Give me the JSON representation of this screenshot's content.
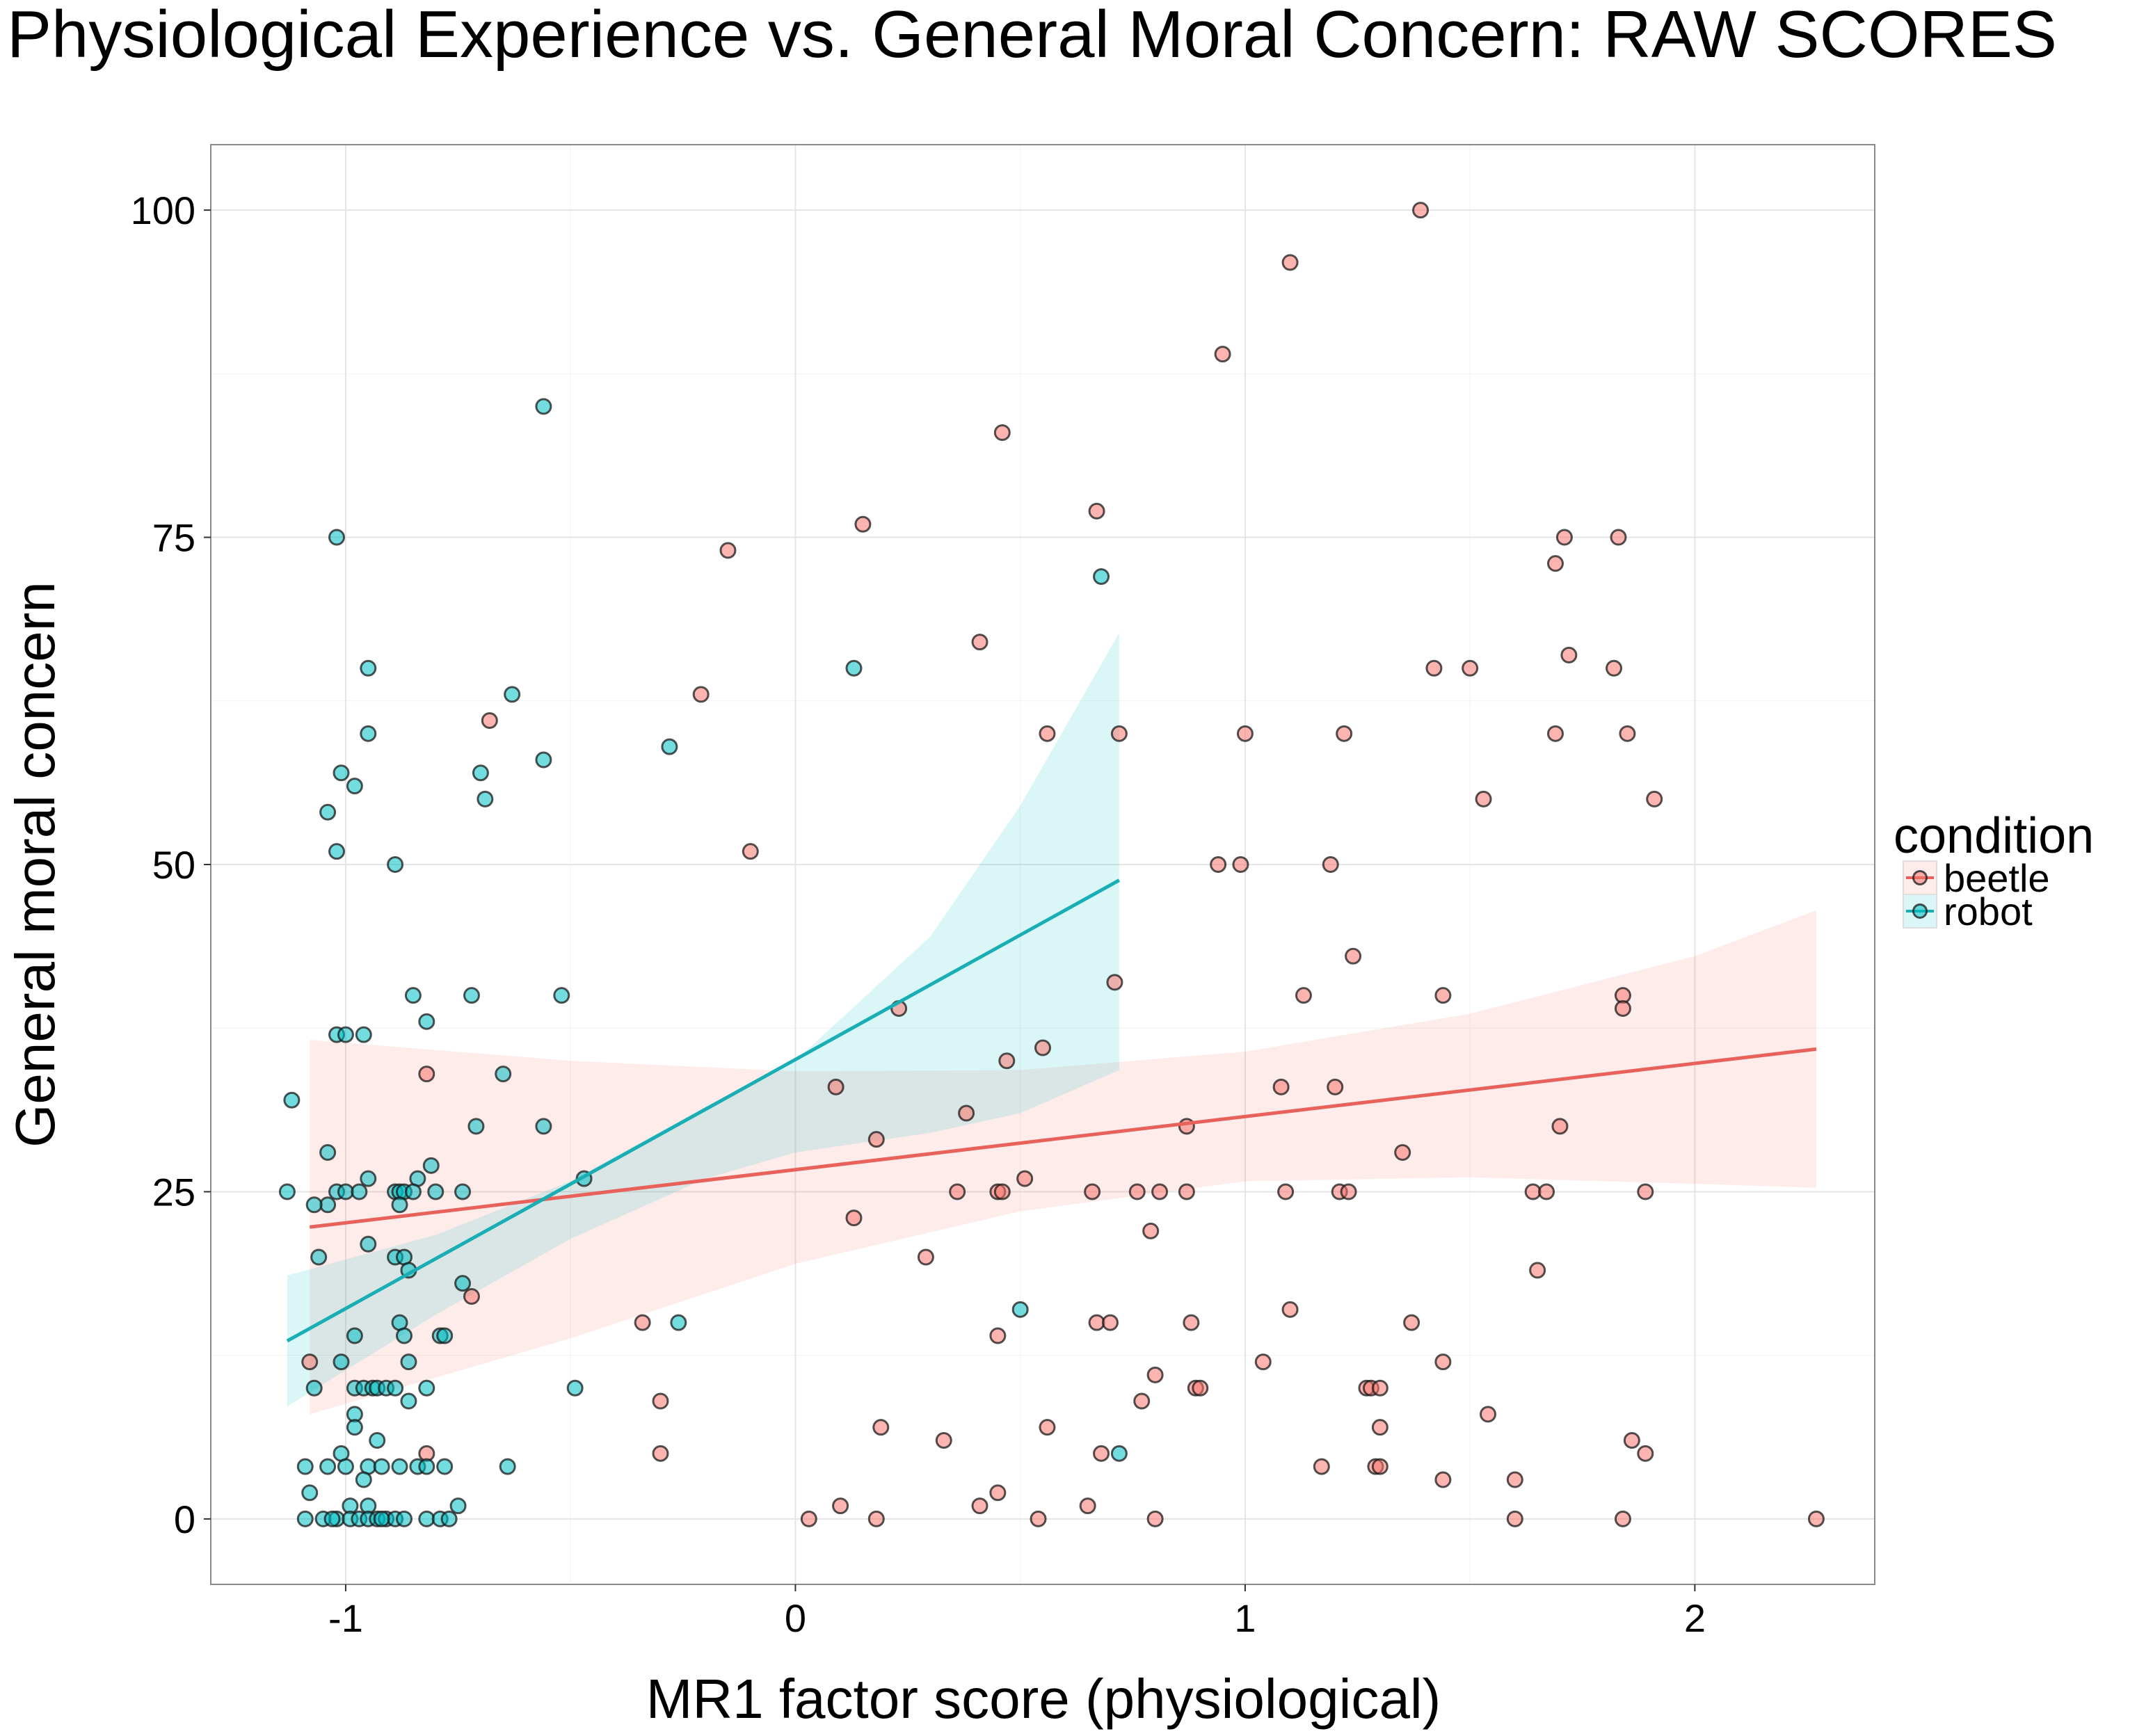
{
  "chart_data": {
    "type": "scatter",
    "title": "Physiological Experience vs. General Moral Concern: RAW SCORES",
    "xlabel": "MR1 factor score (physiological)",
    "ylabel": "General moral concern",
    "xlim": [
      -1.3,
      2.4
    ],
    "ylim": [
      -5,
      105
    ],
    "x_ticks": [
      -1,
      0,
      1,
      2
    ],
    "x_tick_labels": [
      "-1",
      "0",
      "1",
      "2"
    ],
    "y_ticks": [
      0,
      25,
      50,
      75,
      100
    ],
    "y_tick_labels": [
      "0",
      "25",
      "50",
      "75",
      "100"
    ],
    "grid": true,
    "legend": {
      "title": "condition",
      "placement": "right",
      "entries": [
        "beetle",
        "robot"
      ]
    },
    "colors": {
      "beetle": "#F8766D",
      "robot": "#00BFC4",
      "beetle_line": "#E8615B",
      "robot_line": "#19AEB4"
    },
    "series": [
      {
        "name": "beetle",
        "points": [
          [
            1.39,
            100
          ],
          [
            1.1,
            96
          ],
          [
            0.95,
            89
          ],
          [
            0.46,
            83
          ],
          [
            0.67,
            77
          ],
          [
            0.15,
            76
          ],
          [
            -0.15,
            74
          ],
          [
            1.71,
            75
          ],
          [
            1.83,
            75
          ],
          [
            1.69,
            73
          ],
          [
            0.41,
            67
          ],
          [
            1.72,
            66
          ],
          [
            1.42,
            65
          ],
          [
            1.5,
            65
          ],
          [
            1.82,
            65
          ],
          [
            -0.21,
            63
          ],
          [
            -0.68,
            61
          ],
          [
            0.56,
            60
          ],
          [
            0.72,
            60
          ],
          [
            1.0,
            60
          ],
          [
            1.22,
            60
          ],
          [
            1.69,
            60
          ],
          [
            1.85,
            60
          ],
          [
            1.53,
            55
          ],
          [
            1.91,
            55
          ],
          [
            -0.1,
            51
          ],
          [
            0.94,
            50
          ],
          [
            0.99,
            50
          ],
          [
            1.19,
            50
          ],
          [
            1.24,
            43
          ],
          [
            0.71,
            41
          ],
          [
            1.13,
            40
          ],
          [
            1.44,
            40
          ],
          [
            1.84,
            40
          ],
          [
            0.23,
            39
          ],
          [
            1.84,
            39
          ],
          [
            0.55,
            36
          ],
          [
            0.47,
            35
          ],
          [
            -0.82,
            34
          ],
          [
            0.09,
            33
          ],
          [
            1.08,
            33
          ],
          [
            1.2,
            33
          ],
          [
            0.38,
            31
          ],
          [
            0.87,
            30
          ],
          [
            1.7,
            30
          ],
          [
            0.18,
            29
          ],
          [
            1.35,
            28
          ],
          [
            0.51,
            26
          ],
          [
            0.36,
            25
          ],
          [
            0.45,
            25
          ],
          [
            0.46,
            25
          ],
          [
            0.66,
            25
          ],
          [
            0.76,
            25
          ],
          [
            0.81,
            25
          ],
          [
            0.87,
            25
          ],
          [
            1.09,
            25
          ],
          [
            1.21,
            25
          ],
          [
            1.23,
            25
          ],
          [
            1.64,
            25
          ],
          [
            1.67,
            25
          ],
          [
            1.89,
            25
          ],
          [
            0.13,
            23
          ],
          [
            0.79,
            22
          ],
          [
            0.29,
            20
          ],
          [
            1.65,
            19
          ],
          [
            -0.72,
            17
          ],
          [
            1.1,
            16
          ],
          [
            -0.34,
            15
          ],
          [
            0.67,
            15
          ],
          [
            0.7,
            15
          ],
          [
            0.88,
            15
          ],
          [
            1.37,
            15
          ],
          [
            0.45,
            14
          ],
          [
            1.04,
            12
          ],
          [
            1.44,
            12
          ],
          [
            -1.08,
            12
          ],
          [
            0.8,
            11
          ],
          [
            -0.3,
            9
          ],
          [
            0.77,
            9
          ],
          [
            0.89,
            10
          ],
          [
            0.9,
            10
          ],
          [
            1.27,
            10
          ],
          [
            1.28,
            10
          ],
          [
            1.3,
            10
          ],
          [
            1.54,
            8
          ],
          [
            0.19,
            7
          ],
          [
            0.56,
            7
          ],
          [
            1.3,
            7
          ],
          [
            0.33,
            6
          ],
          [
            1.86,
            6
          ],
          [
            -0.3,
            5
          ],
          [
            -0.82,
            5
          ],
          [
            0.68,
            5
          ],
          [
            1.89,
            5
          ],
          [
            1.17,
            4
          ],
          [
            1.29,
            4
          ],
          [
            1.3,
            4
          ],
          [
            1.44,
            3
          ],
          [
            1.6,
            3
          ],
          [
            0.45,
            2
          ],
          [
            0.1,
            1
          ],
          [
            0.41,
            1
          ],
          [
            0.65,
            1
          ],
          [
            0.03,
            0
          ],
          [
            0.18,
            0
          ],
          [
            0.54,
            0
          ],
          [
            0.8,
            0
          ],
          [
            1.6,
            0
          ],
          [
            1.84,
            0
          ],
          [
            2.27,
            0
          ]
        ]
      },
      {
        "name": "robot",
        "points": [
          [
            -0.56,
            85
          ],
          [
            -1.02,
            75
          ],
          [
            0.68,
            72
          ],
          [
            -0.95,
            65
          ],
          [
            0.13,
            65
          ],
          [
            -0.63,
            63
          ],
          [
            -0.95,
            60
          ],
          [
            -0.28,
            59
          ],
          [
            -0.56,
            58
          ],
          [
            -1.01,
            57
          ],
          [
            -0.7,
            57
          ],
          [
            -0.98,
            56
          ],
          [
            -0.69,
            55
          ],
          [
            -1.04,
            54
          ],
          [
            -1.02,
            51
          ],
          [
            -0.89,
            50
          ],
          [
            -0.85,
            40
          ],
          [
            -0.72,
            40
          ],
          [
            -0.52,
            40
          ],
          [
            -0.82,
            38
          ],
          [
            -1.02,
            37
          ],
          [
            -1.0,
            37
          ],
          [
            -0.96,
            37
          ],
          [
            -0.65,
            34
          ],
          [
            -1.12,
            32
          ],
          [
            -0.71,
            30
          ],
          [
            -0.56,
            30
          ],
          [
            -1.04,
            28
          ],
          [
            -0.81,
            27
          ],
          [
            -0.95,
            26
          ],
          [
            -0.84,
            26
          ],
          [
            -0.47,
            26
          ],
          [
            -1.13,
            25
          ],
          [
            -1.02,
            25
          ],
          [
            -1.0,
            25
          ],
          [
            -0.97,
            25
          ],
          [
            -0.89,
            25
          ],
          [
            -0.88,
            25
          ],
          [
            -0.87,
            25
          ],
          [
            -0.85,
            25
          ],
          [
            -0.8,
            25
          ],
          [
            -0.74,
            25
          ],
          [
            -1.04,
            24
          ],
          [
            -0.88,
            24
          ],
          [
            -1.07,
            24
          ],
          [
            -0.95,
            21
          ],
          [
            -1.06,
            20
          ],
          [
            -0.89,
            20
          ],
          [
            -0.87,
            20
          ],
          [
            -0.86,
            19
          ],
          [
            -0.74,
            18
          ],
          [
            0.5,
            16
          ],
          [
            -0.88,
            15
          ],
          [
            -0.26,
            15
          ],
          [
            -0.87,
            14
          ],
          [
            -0.79,
            14
          ],
          [
            -0.78,
            14
          ],
          [
            -0.98,
            14
          ],
          [
            -1.01,
            12
          ],
          [
            -0.86,
            12
          ],
          [
            -0.82,
            10
          ],
          [
            -0.49,
            10
          ],
          [
            -1.07,
            10
          ],
          [
            -0.98,
            10
          ],
          [
            -0.96,
            10
          ],
          [
            -0.94,
            10
          ],
          [
            -0.93,
            10
          ],
          [
            -0.91,
            10
          ],
          [
            -0.89,
            10
          ],
          [
            -0.86,
            9
          ],
          [
            -0.98,
            8
          ],
          [
            -0.98,
            7
          ],
          [
            -0.93,
            6
          ],
          [
            -1.01,
            5
          ],
          [
            0.72,
            5
          ],
          [
            -1.09,
            4
          ],
          [
            -1.04,
            4
          ],
          [
            -1.0,
            4
          ],
          [
            -0.95,
            4
          ],
          [
            -0.92,
            4
          ],
          [
            -0.88,
            4
          ],
          [
            -0.84,
            4
          ],
          [
            -0.82,
            4
          ],
          [
            -0.78,
            4
          ],
          [
            -0.64,
            4
          ],
          [
            -0.96,
            3
          ],
          [
            -1.08,
            2
          ],
          [
            -0.75,
            1
          ],
          [
            -0.99,
            1
          ],
          [
            -0.95,
            1
          ],
          [
            -1.09,
            0
          ],
          [
            -1.05,
            0
          ],
          [
            -1.02,
            0
          ],
          [
            -0.99,
            0
          ],
          [
            -0.97,
            0
          ],
          [
            -0.95,
            0
          ],
          [
            -0.93,
            0
          ],
          [
            -0.91,
            0
          ],
          [
            -0.89,
            0
          ],
          [
            -0.87,
            0
          ],
          [
            -0.82,
            0
          ],
          [
            -0.79,
            0
          ],
          [
            -0.77,
            0
          ],
          [
            -1.03,
            0
          ],
          [
            -0.92,
            0
          ]
        ]
      }
    ],
    "fits": [
      {
        "name": "beetle",
        "x": [
          -1.08,
          2.27
        ],
        "y": [
          22.3,
          35.9
        ],
        "band_upper": [
          [
            -1.08,
            36.6
          ],
          [
            -0.5,
            35.0
          ],
          [
            0.0,
            34.2
          ],
          [
            0.5,
            34.3
          ],
          [
            1.0,
            35.7
          ],
          [
            1.5,
            38.6
          ],
          [
            2.0,
            43.0
          ],
          [
            2.27,
            46.5
          ]
        ],
        "band_lower": [
          [
            -1.08,
            8.0
          ],
          [
            -0.5,
            13.8
          ],
          [
            0.0,
            19.5
          ],
          [
            0.5,
            23.5
          ],
          [
            1.0,
            25.8
          ],
          [
            1.5,
            26.1
          ],
          [
            2.0,
            25.6
          ],
          [
            2.27,
            25.3
          ]
        ]
      },
      {
        "name": "robot",
        "x": [
          -1.13,
          0.72
        ],
        "y": [
          13.6,
          48.8
        ],
        "band_upper": [
          [
            -1.13,
            18.6
          ],
          [
            -0.8,
            21.7
          ],
          [
            -0.5,
            25.8
          ],
          [
            -0.2,
            31.5
          ],
          [
            0.0,
            35.0
          ],
          [
            0.3,
            44.5
          ],
          [
            0.5,
            54.5
          ],
          [
            0.72,
            67.7
          ]
        ],
        "band_lower": [
          [
            -1.13,
            8.6
          ],
          [
            -0.8,
            15.6
          ],
          [
            -0.5,
            21.4
          ],
          [
            -0.2,
            26.0
          ],
          [
            0.0,
            28.0
          ],
          [
            0.3,
            29.5
          ],
          [
            0.5,
            31.0
          ],
          [
            0.72,
            34.3
          ]
        ]
      }
    ]
  }
}
